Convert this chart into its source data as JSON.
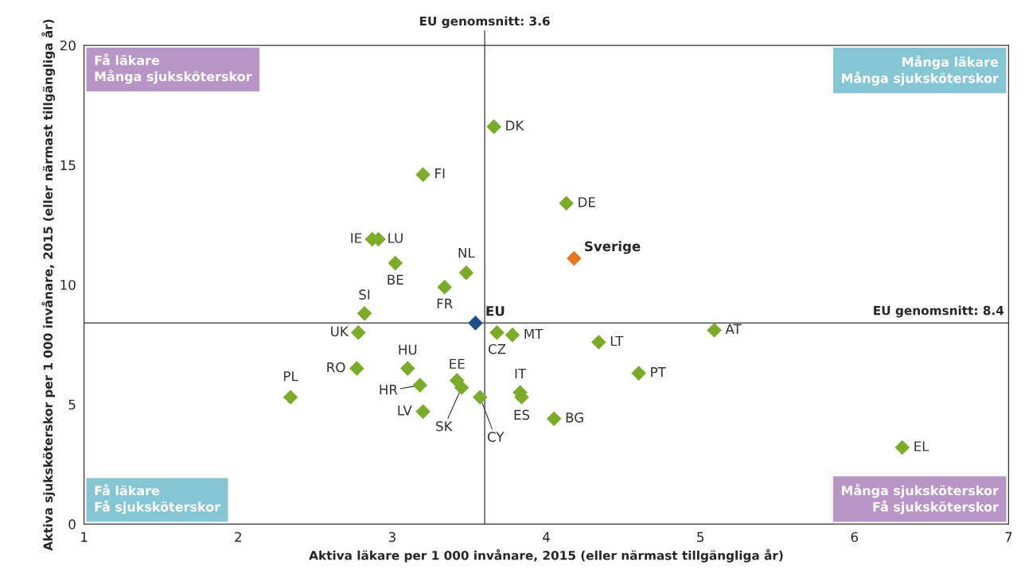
{
  "chart_data": {
    "type": "scatter",
    "xlabel": "Aktiva läkare per 1 000 invånare, 2015 (eller närmast tillgängliga år)",
    "ylabel": "Aktiva sjuksköterskor per 1 000 invånare, 2015 (eller närmast tillgängliga år)",
    "xlim": [
      1,
      7
    ],
    "xticks": [
      1,
      2,
      3,
      4,
      5,
      6,
      7
    ],
    "ylim": [
      0,
      20
    ],
    "yticks": [
      0,
      5,
      10,
      15,
      20
    ],
    "grid": false,
    "marker": "diamond",
    "legend": false,
    "series": [
      {
        "color": "#7aac2a",
        "x": [
          3.66,
          3.2,
          4.13,
          2.87,
          2.91,
          3.02,
          3.48,
          3.34,
          2.82,
          2.78,
          3.68,
          3.78,
          5.09,
          4.34,
          3.1,
          2.77,
          4.6,
          3.42,
          3.18,
          3.45,
          3.83,
          3.84,
          2.34,
          3.57,
          3.2,
          4.05,
          6.31
        ],
        "values": [
          16.6,
          14.6,
          13.4,
          11.9,
          11.9,
          10.9,
          10.5,
          9.9,
          8.8,
          8.0,
          8.0,
          7.9,
          8.1,
          7.6,
          6.5,
          6.5,
          6.3,
          6.0,
          5.8,
          5.7,
          5.5,
          5.3,
          5.3,
          5.3,
          4.7,
          4.4,
          3.2
        ]
      },
      {
        "name": "Sverige",
        "color": "#e87722",
        "x": [
          4.18
        ],
        "values": [
          11.1
        ]
      },
      {
        "name": "EU",
        "color": "#1f4e8c",
        "x": [
          3.54
        ],
        "values": [
          8.4
        ]
      }
    ],
    "ref_lines": [
      {
        "axis": "x",
        "value": 3.6,
        "label": "EU genomsnitt: 3.6",
        "color": "#333333"
      },
      {
        "axis": "y",
        "value": 8.4,
        "label": "EU genomsnitt: 8.4",
        "color": "#333333"
      }
    ],
    "annotations": [
      {
        "text": "DK",
        "x": 3.66,
        "y": 16.6
      },
      {
        "text": "FI",
        "x": 3.2,
        "y": 14.6
      },
      {
        "text": "DE",
        "x": 4.13,
        "y": 13.4
      },
      {
        "text": "IE",
        "x": 2.87,
        "y": 11.9
      },
      {
        "text": "LU",
        "x": 2.91,
        "y": 11.9
      },
      {
        "text": "BE",
        "x": 3.02,
        "y": 10.9
      },
      {
        "text": "NL",
        "x": 3.48,
        "y": 10.5
      },
      {
        "text": "FR",
        "x": 3.34,
        "y": 9.9
      },
      {
        "text": "SI",
        "x": 2.82,
        "y": 8.8
      },
      {
        "text": "UK",
        "x": 2.78,
        "y": 8.0
      },
      {
        "text": "CZ",
        "x": 3.68,
        "y": 8.0
      },
      {
        "text": "MT",
        "x": 3.78,
        "y": 7.9
      },
      {
        "text": "AT",
        "x": 5.09,
        "y": 8.1
      },
      {
        "text": "LT",
        "x": 4.34,
        "y": 7.6
      },
      {
        "text": "HU",
        "x": 3.1,
        "y": 6.5
      },
      {
        "text": "RO",
        "x": 2.77,
        "y": 6.5
      },
      {
        "text": "PT",
        "x": 4.6,
        "y": 6.3
      },
      {
        "text": "EE",
        "x": 3.42,
        "y": 6.0
      },
      {
        "text": "HR",
        "x": 3.18,
        "y": 5.8
      },
      {
        "text": "SK",
        "x": 3.45,
        "y": 5.7
      },
      {
        "text": "IT",
        "x": 3.83,
        "y": 5.5
      },
      {
        "text": "ES",
        "x": 3.84,
        "y": 5.3
      },
      {
        "text": "PL",
        "x": 2.34,
        "y": 5.3
      },
      {
        "text": "CY",
        "x": 3.57,
        "y": 5.3
      },
      {
        "text": "LV",
        "x": 3.2,
        "y": 4.7
      },
      {
        "text": "BG",
        "x": 4.05,
        "y": 4.4
      },
      {
        "text": "EL",
        "x": 6.31,
        "y": 3.2
      },
      "Få läkare\nMånga sjuksköterskor",
      "Många läkare\nMånga sjuksköterskor",
      "Få läkare\nFå sjuksköterskor",
      "Många sjuksköterskor\nFå sjuksköterskor"
    ]
  }
}
